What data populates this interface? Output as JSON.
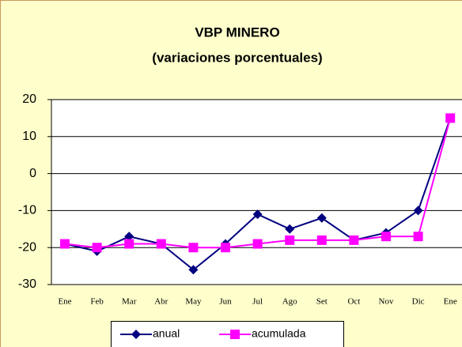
{
  "chart_data": {
    "type": "line",
    "title": "VBP MINERO",
    "subtitle": "(variaciones porcentuales)",
    "categories": [
      "Ene",
      "Feb",
      "Mar",
      "Abr",
      "May",
      "Jun",
      "Jul",
      "Ago",
      "Set",
      "Oct",
      "Nov",
      "Dic",
      "Ene"
    ],
    "series": [
      {
        "name": "anual",
        "color": "#000080",
        "marker": "diamond",
        "values": [
          -19,
          -21,
          -17,
          -19,
          -26,
          -19,
          -11,
          -15,
          -12,
          -18,
          -16,
          -10,
          15
        ]
      },
      {
        "name": "acumulada",
        "color": "#ff00ff",
        "marker": "square",
        "values": [
          -19,
          -20,
          -19,
          -19,
          -20,
          -20,
          -19,
          -18,
          -18,
          -18,
          -17,
          -17,
          15
        ]
      }
    ],
    "ylim": [
      -30,
      20
    ],
    "yticks": [
      -30,
      -20,
      -10,
      0,
      10,
      20
    ],
    "grid": true
  }
}
